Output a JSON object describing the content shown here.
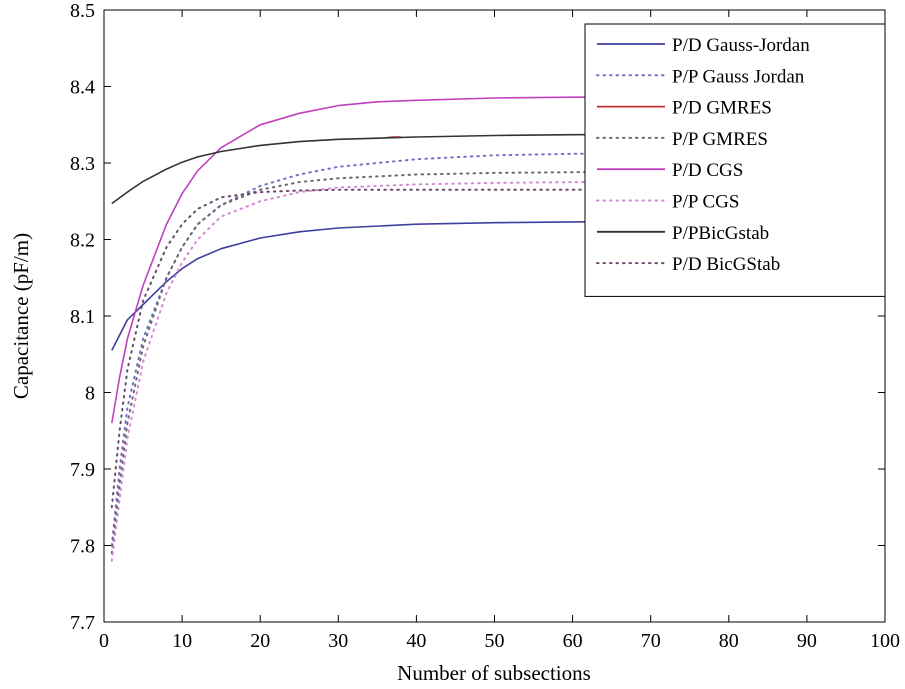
{
  "chart_data": {
    "type": "line",
    "title": "",
    "xlabel": "Number of subsections",
    "ylabel": "Capacitance  (pF/m)",
    "xlim": [
      0,
      100
    ],
    "ylim": [
      7.7,
      8.5
    ],
    "xticks": [
      0,
      10,
      20,
      30,
      40,
      50,
      60,
      70,
      80,
      90,
      100
    ],
    "yticks": [
      7.7,
      7.8,
      7.9,
      8,
      8.1,
      8.2,
      8.3,
      8.4,
      8.5
    ],
    "xtick_labels": [
      "0",
      "10",
      "20",
      "30",
      "40",
      "50",
      "60",
      "70",
      "80",
      "90",
      "100"
    ],
    "ytick_labels": [
      "7.7",
      "7.8",
      "7.9",
      "8",
      "8.1",
      "8.2",
      "8.3",
      "8.4",
      "8.5"
    ],
    "grid": false,
    "legend_position": "top-right",
    "series": [
      {
        "name": "P/D Gauss-Jordan",
        "color": "#3f3fa0",
        "dash": "solid",
        "x": [
          1,
          3,
          5,
          8,
          10,
          12,
          15,
          20,
          25,
          30,
          40,
          50,
          60,
          80,
          100
        ],
        "y": [
          8.055,
          8.095,
          8.115,
          8.145,
          8.162,
          8.175,
          8.188,
          8.202,
          8.21,
          8.215,
          8.22,
          8.222,
          8.223,
          8.224,
          8.224
        ]
      },
      {
        "name": "P/P Gauss Jordan",
        "color": "#7070c8",
        "dash": "dotted",
        "x": [
          1,
          2,
          3,
          5,
          8,
          10,
          12,
          15,
          20,
          25,
          30,
          40,
          50,
          60,
          80,
          100
        ],
        "y": [
          7.8,
          7.9,
          7.98,
          8.07,
          8.15,
          8.19,
          8.22,
          8.245,
          8.27,
          8.285,
          8.295,
          8.305,
          8.31,
          8.312,
          8.314,
          8.315
        ]
      },
      {
        "name": "P/D GMRES",
        "color": "#c03030",
        "dash": "solid",
        "x": [
          36,
          37,
          38
        ],
        "y": [
          8.333,
          8.334,
          8.334
        ]
      },
      {
        "name": "P/P GMRES",
        "color": "#6a6a6a",
        "dash": "dotted",
        "x": [
          1,
          2,
          3,
          5,
          8,
          10,
          12,
          15,
          20,
          25,
          30,
          40,
          50,
          60,
          80,
          100
        ],
        "y": [
          7.79,
          7.88,
          7.96,
          8.06,
          8.15,
          8.19,
          8.22,
          8.245,
          8.265,
          8.275,
          8.28,
          8.285,
          8.287,
          8.288,
          8.289,
          8.29
        ]
      },
      {
        "name": "P/D CGS",
        "color": "#c040c0",
        "dash": "solid",
        "x": [
          1,
          2,
          3,
          5,
          8,
          10,
          12,
          15,
          20,
          25,
          30,
          35,
          40,
          50,
          60,
          80,
          100
        ],
        "y": [
          7.96,
          8.02,
          8.07,
          8.14,
          8.22,
          8.26,
          8.29,
          8.32,
          8.35,
          8.365,
          8.375,
          8.38,
          8.382,
          8.385,
          8.386,
          8.387,
          8.387
        ]
      },
      {
        "name": "P/P CGS",
        "color": "#d488d4",
        "dash": "dotted",
        "x": [
          1,
          2,
          3,
          5,
          8,
          10,
          12,
          15,
          20,
          25,
          30,
          40,
          50,
          60,
          80,
          100
        ],
        "y": [
          7.78,
          7.86,
          7.94,
          8.04,
          8.13,
          8.17,
          8.2,
          8.23,
          8.25,
          8.262,
          8.268,
          8.272,
          8.274,
          8.275,
          8.276,
          8.276
        ]
      },
      {
        "name": "P/PBicGstab",
        "color": "#333333",
        "dash": "solid",
        "x": [
          1,
          3,
          5,
          8,
          10,
          12,
          15,
          20,
          25,
          30,
          40,
          50,
          60,
          80,
          100
        ],
        "y": [
          8.247,
          8.262,
          8.276,
          8.292,
          8.301,
          8.308,
          8.315,
          8.323,
          8.328,
          8.331,
          8.334,
          8.336,
          8.337,
          8.338,
          8.338
        ]
      },
      {
        "name": "P/D BicGStab",
        "color": "#6a4a6a",
        "dash": "dotted",
        "x": [
          1,
          2,
          3,
          5,
          8,
          10,
          12,
          15,
          20,
          25,
          30,
          40,
          50,
          60,
          80,
          100
        ],
        "y": [
          7.85,
          7.95,
          8.03,
          8.12,
          8.19,
          8.22,
          8.24,
          8.255,
          8.262,
          8.264,
          8.265,
          8.265,
          8.265,
          8.265,
          8.265,
          8.265
        ]
      }
    ]
  }
}
